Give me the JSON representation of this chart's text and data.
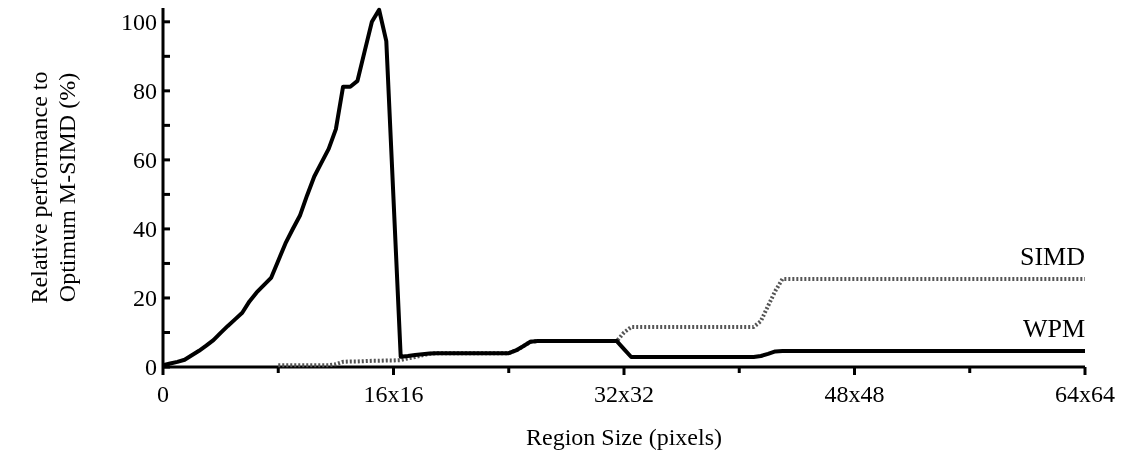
{
  "chart_data": {
    "type": "line",
    "xlabel": "Region Size (pixels)",
    "ylabel": "Relative performance to\nOptimum M-SIMD (%)",
    "categories": [
      "0",
      null,
      null,
      null,
      null,
      null,
      null,
      null,
      null,
      null,
      null,
      null,
      null,
      null,
      null,
      null,
      null,
      null,
      null,
      null,
      null,
      null,
      null,
      null,
      null,
      null,
      null,
      null,
      null,
      null,
      null,
      null,
      "16x16",
      null,
      null,
      null,
      null,
      null,
      null,
      null,
      null,
      null,
      null,
      null,
      null,
      null,
      null,
      null,
      null,
      null,
      null,
      null,
      null,
      null,
      null,
      null,
      null,
      null,
      null,
      null,
      null,
      null,
      null,
      null,
      "32x32",
      null,
      null,
      null,
      null,
      null,
      null,
      null,
      null,
      null,
      null,
      null,
      null,
      null,
      null,
      null,
      null,
      null,
      null,
      null,
      null,
      null,
      null,
      null,
      null,
      null,
      null,
      null,
      null,
      null,
      null,
      null,
      "48x48",
      null,
      null,
      null,
      null,
      null,
      null,
      null,
      null,
      null,
      null,
      null,
      null,
      null,
      null,
      null,
      null,
      null,
      null,
      null,
      null,
      null,
      null,
      null,
      null,
      null,
      null,
      null,
      null,
      null,
      null,
      null,
      "64x64"
    ],
    "ylim": [
      0,
      104
    ],
    "yticks": [
      0,
      {
        "value": 10,
        "label": null
      },
      20,
      {
        "value": 30,
        "label": null
      },
      40,
      {
        "value": 50,
        "label": null
      },
      60,
      {
        "value": 70,
        "label": null
      },
      80,
      {
        "value": 90,
        "label": null
      },
      100
    ],
    "grid": false,
    "legend": false,
    "marker": "none",
    "series": [
      {
        "name": "SIMD",
        "color": "#555555",
        "line_style": "dotted",
        "values": [
          null,
          null,
          null,
          null,
          null,
          null,
          null,
          null,
          null,
          null,
          null,
          null,
          null,
          null,
          null,
          null,
          0.5,
          0.5,
          0.5,
          0.5,
          0.5,
          0.5,
          0.5,
          0.5,
          0.8,
          1.5,
          1.6,
          1.6,
          1.7,
          1.8,
          1.8,
          1.9,
          1.9,
          2,
          2.5,
          2.9,
          3.4,
          3.8,
          4,
          4,
          4,
          4,
          4,
          4,
          4,
          4,
          4,
          4,
          4,
          4.8,
          6,
          7.3,
          7.5,
          7.5,
          7.5,
          7.5,
          7.5,
          7.5,
          7.5,
          7.5,
          7.5,
          7.5,
          7.5,
          7.5,
          10,
          11.6,
          11.6,
          11.6,
          11.6,
          11.6,
          11.6,
          11.6,
          11.6,
          11.6,
          11.6,
          11.6,
          11.6,
          11.6,
          11.6,
          11.6,
          11.6,
          11.6,
          11.6,
          13.3,
          17.7,
          22,
          25.5,
          25.5,
          25.5,
          25.5,
          25.5,
          25.5,
          25.5,
          25.5,
          25.5,
          25.5,
          25.5,
          25.5,
          25.5,
          25.5,
          25.5,
          25.5,
          25.5,
          25.5,
          25.5,
          25.5,
          25.5,
          25.5,
          25.5,
          25.5,
          25.5,
          25.5,
          25.5,
          25.5,
          25.5,
          25.5,
          25.5,
          25.5,
          25.5,
          25.5,
          25.5,
          25.5,
          25.5,
          25.5,
          25.5,
          25.5,
          25.5,
          25.5,
          25.5
        ]
      },
      {
        "name": "WPM",
        "color": "#000000",
        "line_style": "solid",
        "values": [
          0.5,
          1,
          1.5,
          2.1,
          3.4,
          4.7,
          6.2,
          7.8,
          9.9,
          11.9,
          13.8,
          15.7,
          19,
          21.6,
          23.7,
          25.8,
          30.8,
          35.8,
          39.9,
          43.8,
          49.7,
          55.2,
          59.2,
          63.2,
          68.9,
          81.2,
          81.2,
          82.9,
          91.5,
          100,
          103.5,
          94.4,
          48.7,
          3,
          3.2,
          3.5,
          3.7,
          3.9,
          4,
          4,
          4,
          4,
          4,
          4,
          4,
          4,
          4,
          4,
          4,
          4.8,
          6,
          7.3,
          7.5,
          7.5,
          7.5,
          7.5,
          7.5,
          7.5,
          7.5,
          7.5,
          7.5,
          7.5,
          7.5,
          7.5,
          5.2,
          2.9,
          2.9,
          2.9,
          2.9,
          2.9,
          2.9,
          2.9,
          2.9,
          2.9,
          2.9,
          2.9,
          2.9,
          2.9,
          2.9,
          2.9,
          2.9,
          2.9,
          2.9,
          3.2,
          3.8,
          4.5,
          4.6,
          4.6,
          4.6,
          4.6,
          4.6,
          4.6,
          4.6,
          4.6,
          4.6,
          4.6,
          4.6,
          4.6,
          4.6,
          4.6,
          4.6,
          4.6,
          4.6,
          4.6,
          4.6,
          4.6,
          4.6,
          4.6,
          4.6,
          4.6,
          4.6,
          4.6,
          4.6,
          4.6,
          4.6,
          4.6,
          4.6,
          4.6,
          4.6,
          4.6,
          4.6,
          4.6,
          4.6,
          4.6,
          4.6,
          4.6,
          4.6,
          4.6,
          4.6
        ]
      }
    ]
  }
}
